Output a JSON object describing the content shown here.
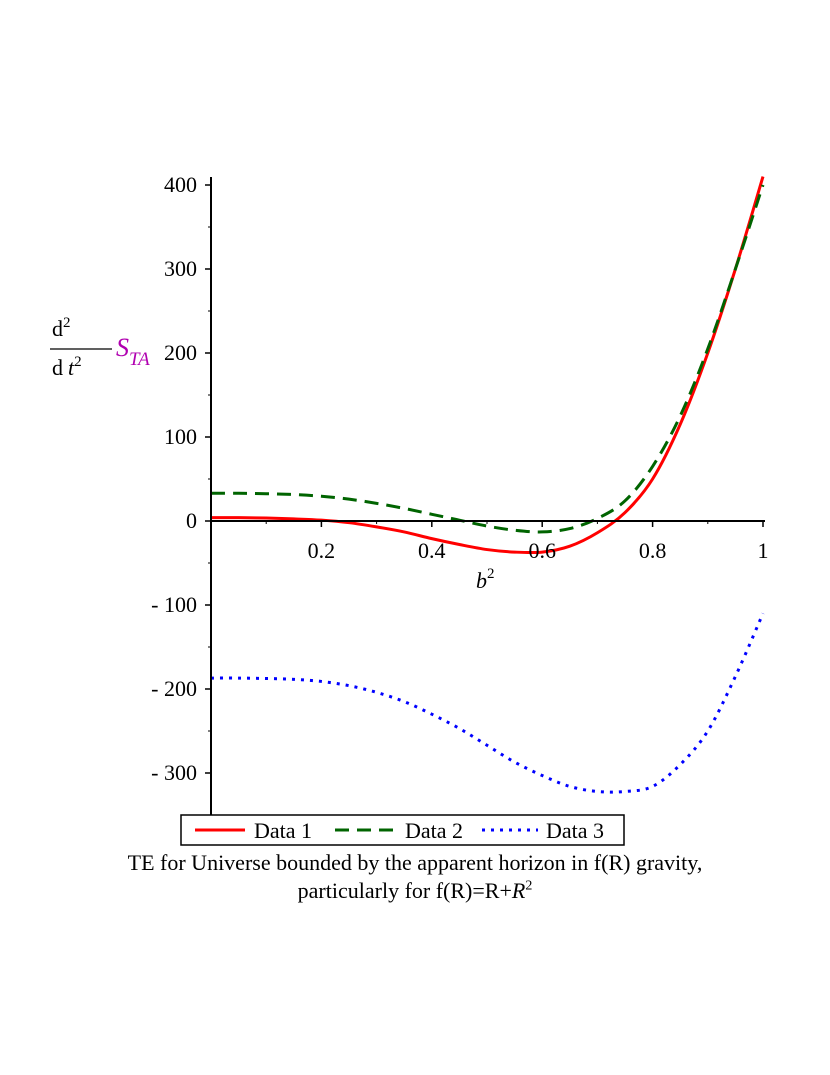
{
  "chart_data": {
    "type": "line",
    "ylabel": {
      "operator": "d",
      "operator_sup": "2",
      "denominator": "d",
      "denominator_var": "t",
      "denominator_sup": "2",
      "symbol": "S",
      "subscript": "TA"
    },
    "xlabel": {
      "base": "b",
      "sup": "2"
    },
    "xlim": [
      0,
      1
    ],
    "ylim": [
      -320,
      400
    ],
    "x_ticks": [
      0.2,
      0.4,
      0.6,
      0.8,
      1
    ],
    "x_tick_labels": [
      "0.2",
      "0.4",
      "0.6",
      "0.8",
      "1"
    ],
    "y_ticks": [
      400,
      300,
      200,
      100,
      0,
      -100,
      -200,
      -300
    ],
    "y_tick_labels": [
      "400",
      "300",
      "200",
      "100",
      "0",
      "- 100",
      "- 200",
      "- 300"
    ],
    "grid": false,
    "legend_position": "bottom",
    "series": [
      {
        "name": "Data 1",
        "color": "#ff0000",
        "style": "solid",
        "x": [
          0,
          0.05,
          0.1,
          0.15,
          0.2,
          0.25,
          0.3,
          0.35,
          0.4,
          0.45,
          0.5,
          0.55,
          0.6,
          0.65,
          0.7,
          0.75,
          0.8,
          0.85,
          0.9,
          0.95,
          1.0
        ],
        "y": [
          4,
          4,
          3.5,
          2.5,
          1,
          -2,
          -7,
          -13,
          -21,
          -28,
          -34,
          -37,
          -37,
          -30,
          -14,
          10,
          50,
          115,
          200,
          300,
          410
        ]
      },
      {
        "name": "Data 2",
        "color": "#006400",
        "style": "dashed",
        "x": [
          0,
          0.05,
          0.1,
          0.15,
          0.2,
          0.25,
          0.3,
          0.35,
          0.4,
          0.45,
          0.5,
          0.55,
          0.6,
          0.65,
          0.7,
          0.75,
          0.8,
          0.85,
          0.9,
          0.95,
          1.0
        ],
        "y": [
          33,
          33,
          32.5,
          31.5,
          29.5,
          26,
          21,
          15,
          8,
          1,
          -6,
          -11,
          -13,
          -9,
          3,
          24,
          65,
          125,
          205,
          300,
          400
        ]
      },
      {
        "name": "Data 3",
        "color": "#0000ff",
        "style": "dotted",
        "x": [
          0,
          0.05,
          0.1,
          0.15,
          0.2,
          0.25,
          0.3,
          0.35,
          0.4,
          0.45,
          0.5,
          0.55,
          0.6,
          0.65,
          0.7,
          0.75,
          0.8,
          0.85,
          0.9,
          0.95,
          1.0
        ],
        "y": [
          -187,
          -187,
          -187.5,
          -188.5,
          -191,
          -196,
          -204,
          -215,
          -230,
          -247,
          -267,
          -287,
          -303,
          -316,
          -322,
          -322,
          -316,
          -290,
          -250,
          -185,
          -110
        ]
      }
    ]
  },
  "legend": {
    "items": [
      "Data 1",
      "Data 2",
      "Data 3"
    ]
  },
  "caption": {
    "line1": "TE for Universe bounded by the apparent horizon in f(R) gravity,",
    "line2_prefix": "particularly for f(R)=R+",
    "line2_var": "R",
    "line2_sup": "2"
  }
}
